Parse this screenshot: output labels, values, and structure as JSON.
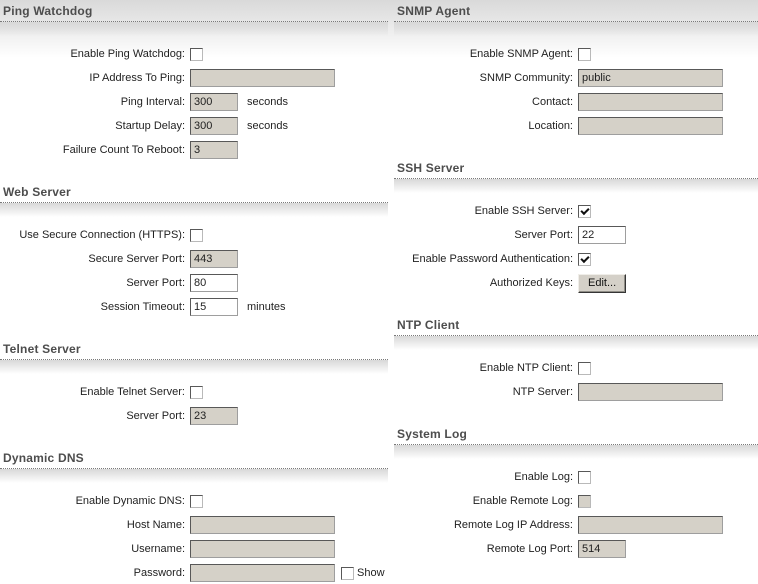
{
  "colors": {
    "disabled_field_bg": "#d5d1c8",
    "section_title": "#4d4d4d",
    "header_band": "#d9d9d9"
  },
  "sections": [
    {
      "id": "ping-watchdog",
      "title": "Ping Watchdog",
      "rows": [
        {
          "label": "Enable Ping Watchdog:",
          "type": "checkbox",
          "checked": false,
          "enabled": true
        },
        {
          "label": "IP Address To Ping:",
          "type": "text",
          "value": "",
          "enabled": false
        },
        {
          "label": "Ping Interval:",
          "type": "text",
          "value": "300",
          "enabled": false,
          "suffix": "seconds"
        },
        {
          "label": "Startup Delay:",
          "type": "text",
          "value": "300",
          "enabled": false,
          "suffix": "seconds"
        },
        {
          "label": "Failure Count To Reboot:",
          "type": "text",
          "value": "3",
          "enabled": false
        }
      ]
    },
    {
      "id": "snmp-agent",
      "title": "SNMP Agent",
      "rows": [
        {
          "label": "Enable SNMP Agent:",
          "type": "checkbox",
          "checked": false,
          "enabled": true
        },
        {
          "label": "SNMP Community:",
          "type": "text",
          "value": "public",
          "enabled": false
        },
        {
          "label": "Contact:",
          "type": "text",
          "value": "",
          "enabled": false
        },
        {
          "label": "Location:",
          "type": "text",
          "value": "",
          "enabled": false
        }
      ]
    },
    {
      "id": "web-server",
      "title": "Web Server",
      "rows": [
        {
          "label": "Use Secure Connection (HTTPS):",
          "type": "checkbox",
          "checked": false,
          "enabled": true
        },
        {
          "label": "Secure Server Port:",
          "type": "text",
          "value": "443",
          "enabled": false
        },
        {
          "label": "Server Port:",
          "type": "text",
          "value": "80",
          "enabled": true
        },
        {
          "label": "Session Timeout:",
          "type": "text",
          "value": "15",
          "enabled": true,
          "suffix": "minutes"
        }
      ]
    },
    {
      "id": "ssh-server",
      "title": "SSH Server",
      "rows": [
        {
          "label": "Enable SSH Server:",
          "type": "checkbox",
          "checked": true,
          "enabled": true
        },
        {
          "label": "Server Port:",
          "type": "text",
          "value": "22",
          "enabled": true
        },
        {
          "label": "Enable Password Authentication:",
          "type": "checkbox",
          "checked": true,
          "enabled": true
        },
        {
          "label": "Authorized Keys:",
          "type": "button",
          "button_label": "Edit..."
        }
      ]
    },
    {
      "id": "telnet-server",
      "title": "Telnet Server",
      "rows": [
        {
          "label": "Enable Telnet Server:",
          "type": "checkbox",
          "checked": false,
          "enabled": true
        },
        {
          "label": "Server Port:",
          "type": "text",
          "value": "23",
          "enabled": false
        }
      ]
    },
    {
      "id": "ntp-client",
      "title": "NTP Client",
      "rows": [
        {
          "label": "Enable NTP Client:",
          "type": "checkbox",
          "checked": false,
          "enabled": true
        },
        {
          "label": "NTP Server:",
          "type": "text",
          "value": "",
          "enabled": false
        }
      ]
    },
    {
      "id": "dynamic-dns",
      "title": "Dynamic DNS",
      "rows": [
        {
          "label": "Enable Dynamic DNS:",
          "type": "checkbox",
          "checked": false,
          "enabled": true
        },
        {
          "label": "Host Name:",
          "type": "text",
          "value": "",
          "enabled": false
        },
        {
          "label": "Username:",
          "type": "text",
          "value": "",
          "enabled": false
        },
        {
          "label": "Password:",
          "type": "password",
          "value": "",
          "enabled": false,
          "extra": {
            "type": "checkbox",
            "checked": false,
            "label": "Show"
          }
        }
      ]
    },
    {
      "id": "system-log",
      "title": "System Log",
      "rows": [
        {
          "label": "Enable Log:",
          "type": "checkbox",
          "checked": false,
          "enabled": true
        },
        {
          "label": "Enable Remote Log:",
          "type": "checkbox",
          "checked": false,
          "enabled": false
        },
        {
          "label": "Remote Log IP Address:",
          "type": "text",
          "value": "",
          "enabled": false
        },
        {
          "label": "Remote Log Port:",
          "type": "text",
          "value": "514",
          "enabled": false
        }
      ]
    }
  ]
}
